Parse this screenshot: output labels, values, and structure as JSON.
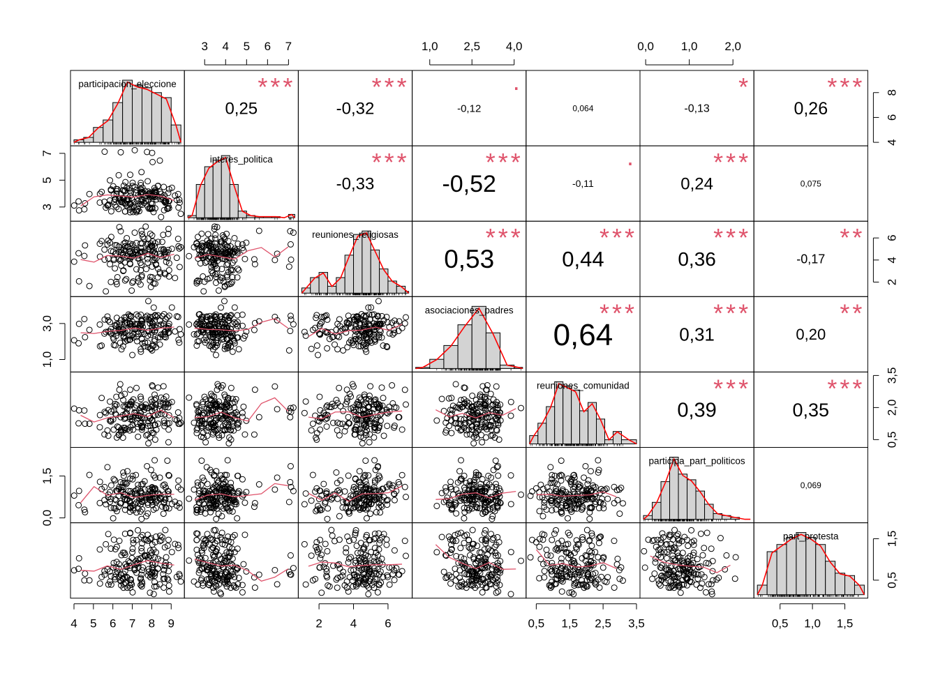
{
  "chart_data": {
    "type": "scatter-matrix",
    "variables": [
      "participacion_elecciones",
      "interes_politica",
      "reuniones_religiosas",
      "asociaciones_padres",
      "reuniones_comunidad",
      "participa_part_politicos",
      "part_protesta"
    ],
    "diagonal_labels": [
      "participacion_eleccione",
      "interes_politica",
      "reuniones_religiosas",
      "asociaciones_padres",
      "reuniones_comunidad",
      "participa_part_politicos",
      "part_protesta"
    ],
    "ranges": [
      [
        4,
        9.5
      ],
      [
        2.2,
        7.3
      ],
      [
        1,
        7.2
      ],
      [
        0.5,
        4.3
      ],
      [
        0.3,
        3.5
      ],
      [
        -0.05,
        2.4
      ],
      [
        0.15,
        1.8
      ]
    ],
    "correlations": [
      {
        "row": 0,
        "col": 1,
        "r": "0,25",
        "stars": "***",
        "size": 24
      },
      {
        "row": 0,
        "col": 2,
        "r": "-0,32",
        "stars": "***",
        "size": 24
      },
      {
        "row": 0,
        "col": 3,
        "r": "-0,12",
        "stars": "·",
        "size": 15
      },
      {
        "row": 0,
        "col": 4,
        "r": "0,064",
        "stars": "",
        "size": 12
      },
      {
        "row": 0,
        "col": 5,
        "r": "-0,13",
        "stars": "*",
        "size": 16
      },
      {
        "row": 0,
        "col": 6,
        "r": "0,26",
        "stars": "***",
        "size": 25
      },
      {
        "row": 1,
        "col": 2,
        "r": "-0,33",
        "stars": "***",
        "size": 24
      },
      {
        "row": 1,
        "col": 3,
        "r": "-0,52",
        "stars": "***",
        "size": 34
      },
      {
        "row": 1,
        "col": 4,
        "r": "-0,11",
        "stars": "·",
        "size": 14
      },
      {
        "row": 1,
        "col": 5,
        "r": "0,24",
        "stars": "***",
        "size": 24
      },
      {
        "row": 1,
        "col": 6,
        "r": "0,075",
        "stars": "",
        "size": 12
      },
      {
        "row": 2,
        "col": 3,
        "r": "0,53",
        "stars": "***",
        "size": 37
      },
      {
        "row": 2,
        "col": 4,
        "r": "0,44",
        "stars": "***",
        "size": 31
      },
      {
        "row": 2,
        "col": 5,
        "r": "0,36",
        "stars": "***",
        "size": 28
      },
      {
        "row": 2,
        "col": 6,
        "r": "-0,17",
        "stars": "**",
        "size": 18
      },
      {
        "row": 3,
        "col": 4,
        "r": "0,64",
        "stars": "***",
        "size": 44
      },
      {
        "row": 3,
        "col": 5,
        "r": "0,31",
        "stars": "***",
        "size": 26
      },
      {
        "row": 3,
        "col": 6,
        "r": "0,20",
        "stars": "**",
        "size": 22
      },
      {
        "row": 4,
        "col": 5,
        "r": "0,39",
        "stars": "***",
        "size": 29
      },
      {
        "row": 4,
        "col": 6,
        "r": "0,35",
        "stars": "***",
        "size": 27
      },
      {
        "row": 5,
        "col": 6,
        "r": "0,069",
        "stars": "",
        "size": 12
      }
    ],
    "axes": {
      "top": [
        {
          "col": 1,
          "ticks": [
            "3",
            "4",
            "5",
            "6",
            "7"
          ],
          "values": [
            3,
            4,
            5,
            6,
            7
          ]
        },
        {
          "col": 3,
          "ticks": [
            "1,0",
            "2,5",
            "4,0"
          ],
          "values": [
            1.0,
            2.5,
            4.0
          ]
        },
        {
          "col": 5,
          "ticks": [
            "0,0",
            "1,0",
            "2,0"
          ],
          "values": [
            0.0,
            1.0,
            2.0
          ]
        }
      ],
      "bottom": [
        {
          "col": 0,
          "ticks": [
            "4",
            "5",
            "6",
            "7",
            "8",
            "9"
          ],
          "values": [
            4,
            5,
            6,
            7,
            8,
            9
          ]
        },
        {
          "col": 2,
          "ticks": [
            "2",
            "4",
            "6"
          ],
          "values": [
            2,
            4,
            6
          ]
        },
        {
          "col": 4,
          "ticks": [
            "0,5",
            "1,5",
            "2,5",
            "3,5"
          ],
          "values": [
            0.5,
            1.5,
            2.5,
            3.5
          ]
        },
        {
          "col": 6,
          "ticks": [
            "0,5",
            "1,0",
            "1,5"
          ],
          "values": [
            0.5,
            1.0,
            1.5
          ]
        }
      ],
      "left": [
        {
          "row": 1,
          "ticks": [
            "3",
            "5",
            "7"
          ],
          "values": [
            3,
            5,
            7
          ]
        },
        {
          "row": 3,
          "ticks": [
            "1,0",
            "3,0"
          ],
          "values": [
            1.0,
            3.0
          ]
        },
        {
          "row": 5,
          "ticks": [
            "0,0",
            "1,5"
          ],
          "values": [
            0.0,
            1.5
          ]
        }
      ],
      "right": [
        {
          "row": 0,
          "ticks": [
            "4",
            "6",
            "8"
          ],
          "values": [
            4,
            6,
            8
          ]
        },
        {
          "row": 2,
          "ticks": [
            "2",
            "4",
            "6"
          ],
          "values": [
            2,
            4,
            6
          ]
        },
        {
          "row": 4,
          "ticks": [
            "0,5",
            "2,0",
            "3,5"
          ],
          "values": [
            0.5,
            2.0,
            3.5
          ]
        },
        {
          "row": 6,
          "ticks": [
            "0,5",
            "1,5"
          ],
          "values": [
            0.5,
            1.5
          ]
        }
      ]
    },
    "histograms": [
      {
        "edges": [
          4,
          4.5,
          5,
          5.5,
          6,
          6.5,
          7,
          7.5,
          8,
          8.5,
          9,
          9.5
        ],
        "counts": [
          1,
          2,
          6,
          9,
          16,
          25,
          23,
          22,
          20,
          18,
          7
        ]
      },
      {
        "edges": [
          2.2,
          2.6,
          3.0,
          3.4,
          3.8,
          4.2,
          4.6,
          5.0,
          5.4,
          5.8,
          6.2,
          6.6,
          7.0,
          7.3
        ],
        "counts": [
          2,
          30,
          46,
          52,
          56,
          30,
          6,
          2,
          1,
          1,
          1,
          0,
          3
        ]
      },
      {
        "edges": [
          1,
          1.5,
          2,
          2.5,
          3,
          3.5,
          4,
          4.5,
          5,
          5.5,
          6,
          6.5,
          7,
          7.2
        ],
        "counts": [
          3,
          9,
          12,
          4,
          9,
          22,
          34,
          36,
          25,
          14,
          7,
          4,
          1
        ]
      },
      {
        "edges": [
          0.5,
          1.0,
          1.5,
          2.0,
          2.5,
          3.0,
          3.5,
          4.0,
          4.3
        ],
        "counts": [
          1,
          8,
          20,
          38,
          54,
          31,
          3,
          1
        ]
      },
      {
        "edges": [
          0.3,
          0.55,
          0.8,
          1.05,
          1.3,
          1.55,
          1.8,
          2.05,
          2.3,
          2.55,
          2.8,
          3.05,
          3.5
        ],
        "counts": [
          2,
          5,
          9,
          15,
          14,
          13,
          8,
          10,
          6,
          1,
          3,
          1
        ]
      },
      {
        "edges": [
          -0.05,
          0.15,
          0.35,
          0.55,
          0.75,
          0.95,
          1.15,
          1.35,
          1.55,
          1.75,
          1.95,
          2.15,
          2.4
        ],
        "counts": [
          2,
          9,
          20,
          33,
          24,
          21,
          15,
          8,
          3,
          2,
          1,
          0
        ]
      },
      {
        "edges": [
          0.15,
          0.3,
          0.45,
          0.6,
          0.75,
          0.9,
          1.05,
          1.2,
          1.35,
          1.5,
          1.65,
          1.8
        ],
        "counts": [
          4,
          18,
          21,
          24,
          26,
          24,
          21,
          14,
          9,
          8,
          4
        ]
      }
    ],
    "series_colors": {
      "histogram": "#d3d3d3",
      "density": "#ff0000",
      "smoother": "#df536b",
      "stars": "#df536b",
      "points": "#000000"
    }
  }
}
